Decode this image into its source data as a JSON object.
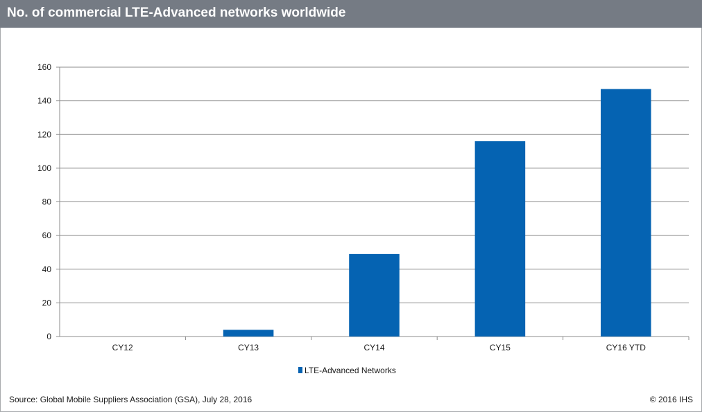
{
  "title": "No. of commercial LTE-Advanced networks worldwide",
  "footer": {
    "source": "Source: Global Mobile Suppliers Association (GSA), July 28, 2016",
    "copyright": "© 2016 IHS"
  },
  "colors": {
    "header_bg": "#757b84",
    "bar": "#0563b2",
    "grid": "#8c8c8c",
    "text": "#1a1a1a"
  },
  "chart_data": {
    "type": "bar",
    "categories": [
      "CY12",
      "CY13",
      "CY14",
      "CY15",
      "CY16 YTD"
    ],
    "series": [
      {
        "name": "LTE-Advanced Networks",
        "values": [
          0,
          4,
          49,
          116,
          147
        ]
      }
    ],
    "ylim": [
      0,
      160
    ],
    "yticks": [
      0,
      20,
      40,
      60,
      80,
      100,
      120,
      140,
      160
    ],
    "grid": true,
    "legend": "bottom-center"
  }
}
